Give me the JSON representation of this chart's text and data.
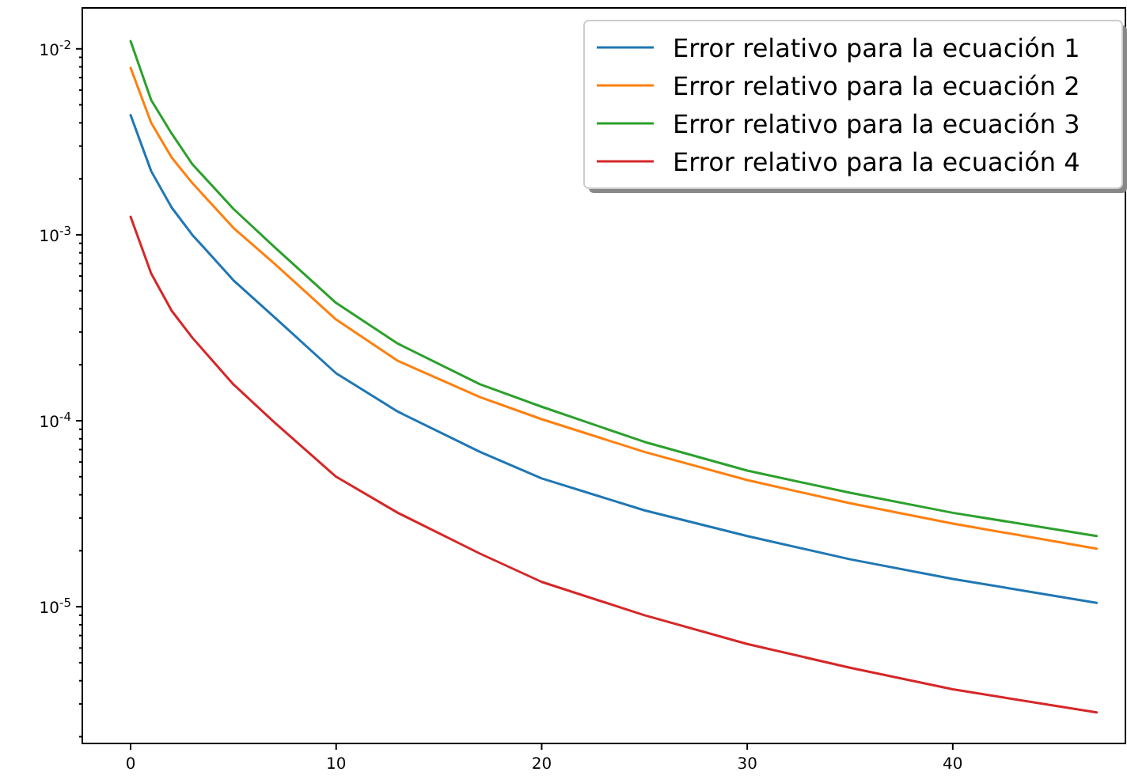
{
  "chart_data": {
    "type": "line",
    "log": "y",
    "grid": false,
    "legend": "top right",
    "line_style": "solid",
    "marker": "none",
    "x": [
      0,
      1,
      2,
      3,
      5,
      7,
      10,
      13,
      17,
      20,
      25,
      30,
      35,
      40,
      47
    ],
    "xlim": [
      -2.35,
      48.4
    ],
    "xticks": [
      0,
      10,
      20,
      30,
      40
    ],
    "ylim": [
      1.84e-06,
      0.0166
    ],
    "yticks": [
      {
        "value": 0.01,
        "label": "10$^{-2}$"
      },
      {
        "value": 0.001,
        "label": "10$^{-3}$"
      },
      {
        "value": 0.0001,
        "label": "10$^{-4}$"
      },
      {
        "value": 1e-05,
        "label": "10$^{-5}$"
      },
      {
        "value": 2e-06,
        "label": null
      },
      {
        "value": 3e-06,
        "label": null
      },
      {
        "value": 4e-06,
        "label": null
      },
      {
        "value": 5e-06,
        "label": null
      },
      {
        "value": 6e-06,
        "label": null
      },
      {
        "value": 7e-06,
        "label": null
      },
      {
        "value": 8e-06,
        "label": null
      },
      {
        "value": 9e-06,
        "label": null
      },
      {
        "value": 2e-05,
        "label": null
      },
      {
        "value": 3e-05,
        "label": null
      },
      {
        "value": 4e-05,
        "label": null
      },
      {
        "value": 5e-05,
        "label": null
      },
      {
        "value": 6e-05,
        "label": null
      },
      {
        "value": 7e-05,
        "label": null
      },
      {
        "value": 8e-05,
        "label": null
      },
      {
        "value": 9e-05,
        "label": null
      },
      {
        "value": 0.0002,
        "label": null
      },
      {
        "value": 0.0003,
        "label": null
      },
      {
        "value": 0.0004,
        "label": null
      },
      {
        "value": 0.0005,
        "label": null
      },
      {
        "value": 0.0006,
        "label": null
      },
      {
        "value": 0.0007,
        "label": null
      },
      {
        "value": 0.0008,
        "label": null
      },
      {
        "value": 0.0009,
        "label": null
      },
      {
        "value": 0.002,
        "label": null
      },
      {
        "value": 0.003,
        "label": null
      },
      {
        "value": 0.004,
        "label": null
      },
      {
        "value": 0.005,
        "label": null
      },
      {
        "value": 0.006,
        "label": null
      },
      {
        "value": 0.007,
        "label": null
      },
      {
        "value": 0.008,
        "label": null
      },
      {
        "value": 0.009,
        "label": null
      }
    ],
    "series": [
      {
        "name": "Error relativo para la ecuación 1",
        "color": "#1f77b4",
        "values": [
          0.0044,
          0.0022,
          0.0014,
          0.001,
          0.00057,
          0.00036,
          0.00018,
          0.000112,
          6.8e-05,
          4.9e-05,
          3.3e-05,
          2.4e-05,
          1.8e-05,
          1.41e-05,
          1.05e-05
        ]
      },
      {
        "name": "Error relativo para la ecuación 2",
        "color": "#ff7f0e",
        "values": [
          0.0079,
          0.004,
          0.0026,
          0.0019,
          0.00109,
          0.0007,
          0.00035,
          0.00021,
          0.000134,
          0.000102,
          6.8e-05,
          4.8e-05,
          3.6e-05,
          2.8e-05,
          2.05e-05
        ]
      },
      {
        "name": "Error relativo para la ecuación 3",
        "color": "#2ca02c",
        "values": [
          0.011,
          0.0053,
          0.0035,
          0.0024,
          0.00138,
          0.00086,
          0.00043,
          0.00026,
          0.000157,
          0.000119,
          7.7e-05,
          5.4e-05,
          4.1e-05,
          3.2e-05,
          2.4e-05
        ]
      },
      {
        "name": "Error relativo para la ecuación 4",
        "color": "#d62728",
        "values": [
          0.00125,
          0.00062,
          0.00039,
          0.00028,
          0.000157,
          9.8e-05,
          5e-05,
          3.2e-05,
          1.93e-05,
          1.36e-05,
          9e-06,
          6.3e-06,
          4.7e-06,
          3.6e-06,
          2.7e-06
        ]
      }
    ]
  }
}
